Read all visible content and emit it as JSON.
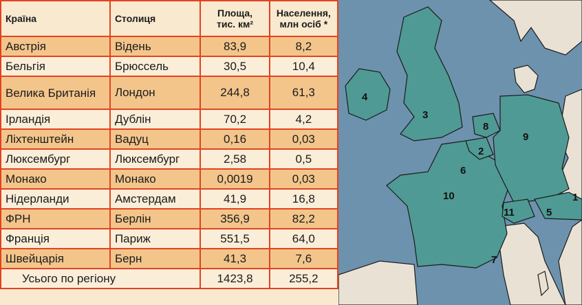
{
  "table": {
    "headers": {
      "country": "Країна",
      "capital": "Столиця",
      "area_line1": "Площа,",
      "area_line2": "тис. км²",
      "population_line1": "Населення,",
      "population_line2": "млн осіб *"
    },
    "rows": [
      {
        "country": "Австрія",
        "capital": "Відень",
        "area": "83,9",
        "population": "8,2"
      },
      {
        "country": "Бельгія",
        "capital": "Брюссель",
        "area": "30,5",
        "population": "10,4"
      },
      {
        "country": "Велика Британія",
        "capital": "Лондон",
        "area": "244,8",
        "population": "61,3"
      },
      {
        "country": "Ірландія",
        "capital": "Дублін",
        "area": "70,2",
        "population": "4,2"
      },
      {
        "country": "Ліхтенштейн",
        "capital": "Вадуц",
        "area": "0,16",
        "population": "0,03"
      },
      {
        "country": "Люксембург",
        "capital": "Люксембург",
        "area": "2,58",
        "population": "0,5"
      },
      {
        "country": "Монако",
        "capital": "Монако",
        "area": "0,0019",
        "population": "0,03"
      },
      {
        "country": "Нідерланди",
        "capital": "Амстердам",
        "area": "41,9",
        "population": "16,8"
      },
      {
        "country": "ФРН",
        "capital": "Берлін",
        "area": "356,9",
        "population": "82,2"
      },
      {
        "country": "Франція",
        "capital": "Париж",
        "area": "551,5",
        "population": "64,0"
      },
      {
        "country": "Швейцарія",
        "capital": "Берн",
        "area": "41,3",
        "population": "7,6"
      }
    ],
    "total": {
      "label": "Усього по регіону",
      "area": "1423,8",
      "population": "255,2"
    }
  },
  "map": {
    "labels": [
      "4",
      "3",
      "8",
      "2",
      "6",
      "9",
      "10",
      "11",
      "5",
      "7",
      "1"
    ],
    "colors": {
      "sea": "#6d92ad",
      "region": "#4f9a94",
      "other_land": "#e9e2d4",
      "border": "#1a1a1a"
    }
  }
}
